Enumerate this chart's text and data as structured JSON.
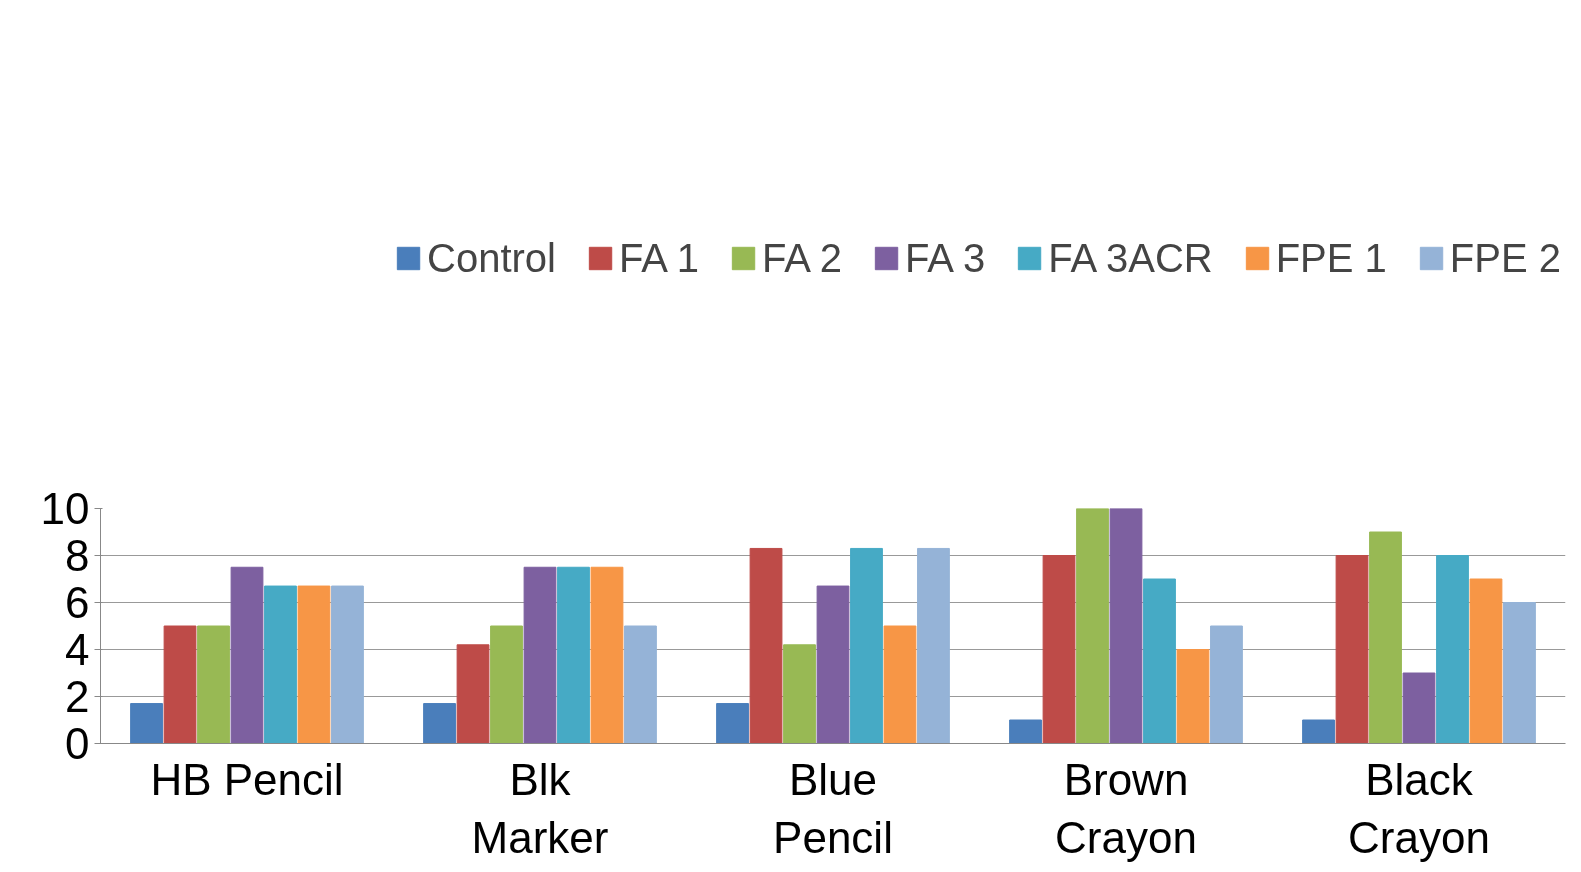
{
  "chart_data": {
    "type": "bar",
    "categories": [
      "HB Pencil",
      "Blk\nMarker",
      "Blue\nPencil",
      "Brown\nCrayon",
      "Black\nCrayon"
    ],
    "series": [
      {
        "name": "Control",
        "color": "#4a7ebb",
        "values": [
          1.7,
          1.7,
          1.7,
          1,
          1
        ]
      },
      {
        "name": "FA 1",
        "color": "#be4b48",
        "values": [
          5,
          4.2,
          8.3,
          8,
          8
        ]
      },
      {
        "name": "FA 2",
        "color": "#98b954",
        "values": [
          5,
          5,
          4.2,
          10,
          9
        ]
      },
      {
        "name": "FA 3",
        "color": "#7d60a0",
        "values": [
          7.5,
          7.5,
          6.7,
          10,
          3
        ]
      },
      {
        "name": "FA 3ACR",
        "color": "#46aac5",
        "values": [
          6.7,
          7.5,
          8.3,
          7,
          8
        ]
      },
      {
        "name": "FPE 1",
        "color": "#f79646",
        "values": [
          6.7,
          7.5,
          5,
          4,
          7
        ]
      },
      {
        "name": "FPE 2",
        "color": "#95b3d7",
        "values": [
          6.7,
          5,
          8.3,
          5,
          6
        ]
      }
    ],
    "ylim": [
      0,
      10
    ],
    "yticks": [
      0,
      2,
      4,
      6,
      8,
      10
    ],
    "grid": "y",
    "legend": "top"
  }
}
